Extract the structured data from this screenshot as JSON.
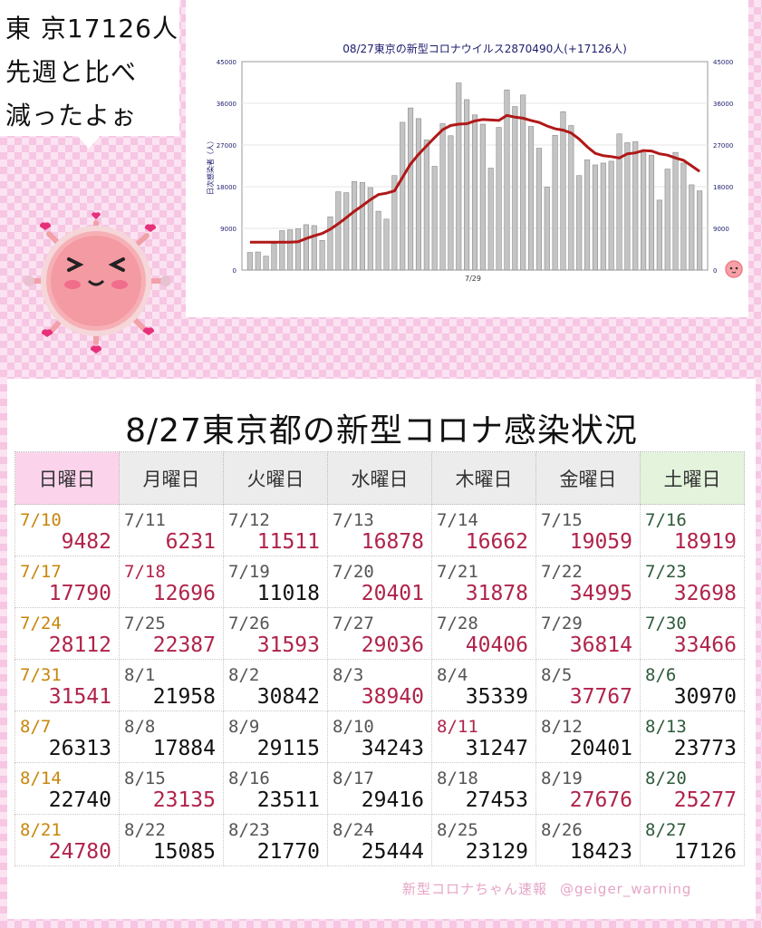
{
  "speech": {
    "line1": "東 京17126人",
    "line2": "先週と比べ",
    "line3": "減ったよぉ"
  },
  "chart_data": {
    "type": "bar",
    "title": "08/27東京の新型コロナウイルス2870490人(+17126人)",
    "ylabel": "日次感染者（人）",
    "xtick": "7/29",
    "ylim": [
      0,
      45000
    ],
    "yticks": [
      "0",
      "9000",
      "18000",
      "27000",
      "36000",
      "45000"
    ],
    "bar_color": "#c4c4c4",
    "avg_color": "#b01818",
    "values": [
      3800,
      3900,
      3000,
      5700,
      8500,
      8700,
      8900,
      9800,
      9600,
      6400,
      11500,
      16900,
      16700,
      19100,
      18900,
      17800,
      12700,
      11000,
      20400,
      31900,
      35000,
      32700,
      28100,
      22400,
      31600,
      29000,
      40400,
      36800,
      33500,
      31500,
      22000,
      30800,
      38900,
      35300,
      37800,
      31000,
      26300,
      17900,
      29100,
      34200,
      31200,
      20400,
      23800,
      22700,
      23100,
      23500,
      29400,
      27500,
      27700,
      25300,
      24800,
      15100,
      21800,
      25400,
      23100,
      18400,
      17100
    ],
    "moving_average": [
      6000,
      6000,
      6000,
      6000,
      6000,
      6000,
      6100,
      6800,
      7400,
      7900,
      8800,
      10000,
      11300,
      12700,
      13900,
      15200,
      16300,
      16600,
      17100,
      20000,
      22900,
      25000,
      26800,
      28600,
      30300,
      31200,
      31500,
      31600,
      32200,
      32500,
      32400,
      32300,
      33400,
      33000,
      32800,
      32300,
      31900,
      31100,
      30500,
      30200,
      29600,
      28300,
      26600,
      25200,
      24700,
      24500,
      24200,
      25100,
      25300,
      25800,
      25700,
      25100,
      24800,
      24200,
      23700,
      22500,
      21300
    ]
  },
  "table": {
    "title": "8/27東京都の新型コロナ感染状況",
    "headers": [
      "日曜日",
      "月曜日",
      "火曜日",
      "水曜日",
      "木曜日",
      "金曜日",
      "土曜日"
    ],
    "rows": [
      [
        {
          "date": "7/10",
          "value": "9482"
        },
        {
          "date": "7/11",
          "value": "6231"
        },
        {
          "date": "7/12",
          "value": "11511"
        },
        {
          "date": "7/13",
          "value": "16878"
        },
        {
          "date": "7/14",
          "value": "16662"
        },
        {
          "date": "7/15",
          "value": "19059"
        },
        {
          "date": "7/16",
          "value": "18919"
        }
      ],
      [
        {
          "date": "7/17",
          "value": "17790"
        },
        {
          "date": "7/18",
          "value": "12696"
        },
        {
          "date": "7/19",
          "value": "11018"
        },
        {
          "date": "7/20",
          "value": "20401"
        },
        {
          "date": "7/21",
          "value": "31878"
        },
        {
          "date": "7/22",
          "value": "34995"
        },
        {
          "date": "7/23",
          "value": "32698"
        }
      ],
      [
        {
          "date": "7/24",
          "value": "28112"
        },
        {
          "date": "7/25",
          "value": "22387"
        },
        {
          "date": "7/26",
          "value": "31593"
        },
        {
          "date": "7/27",
          "value": "29036"
        },
        {
          "date": "7/28",
          "value": "40406"
        },
        {
          "date": "7/29",
          "value": "36814"
        },
        {
          "date": "7/30",
          "value": "33466"
        }
      ],
      [
        {
          "date": "7/31",
          "value": "31541"
        },
        {
          "date": "8/1",
          "value": "21958"
        },
        {
          "date": "8/2",
          "value": "30842"
        },
        {
          "date": "8/3",
          "value": "38940"
        },
        {
          "date": "8/4",
          "value": "35339"
        },
        {
          "date": "8/5",
          "value": "37767"
        },
        {
          "date": "8/6",
          "value": "30970"
        }
      ],
      [
        {
          "date": "8/7",
          "value": "26313"
        },
        {
          "date": "8/8",
          "value": "17884"
        },
        {
          "date": "8/9",
          "value": "29115"
        },
        {
          "date": "8/10",
          "value": "34243"
        },
        {
          "date": "8/11",
          "value": "31247"
        },
        {
          "date": "8/12",
          "value": "20401"
        },
        {
          "date": "8/13",
          "value": "23773"
        }
      ],
      [
        {
          "date": "8/14",
          "value": "22740"
        },
        {
          "date": "8/15",
          "value": "23135"
        },
        {
          "date": "8/16",
          "value": "23511"
        },
        {
          "date": "8/17",
          "value": "29416"
        },
        {
          "date": "8/18",
          "value": "27453"
        },
        {
          "date": "8/19",
          "value": "27676"
        },
        {
          "date": "8/20",
          "value": "25277"
        }
      ],
      [
        {
          "date": "8/21",
          "value": "24780"
        },
        {
          "date": "8/22",
          "value": "15085"
        },
        {
          "date": "8/23",
          "value": "21770"
        },
        {
          "date": "8/24",
          "value": "25444"
        },
        {
          "date": "8/25",
          "value": "23129"
        },
        {
          "date": "8/26",
          "value": "18423"
        },
        {
          "date": "8/27",
          "value": "17126"
        }
      ]
    ],
    "highlighted": [
      [
        1,
        1,
        1,
        1,
        1,
        1,
        1
      ],
      [
        1,
        1,
        0,
        1,
        1,
        1,
        1
      ],
      [
        1,
        1,
        1,
        1,
        1,
        1,
        1
      ],
      [
        1,
        0,
        0,
        1,
        0,
        1,
        0
      ],
      [
        0,
        0,
        0,
        0,
        0,
        0,
        0
      ],
      [
        0,
        1,
        0,
        0,
        0,
        1,
        1
      ],
      [
        1,
        0,
        0,
        0,
        0,
        0,
        0
      ]
    ],
    "holiday_dates": [
      "7/18",
      "8/11"
    ]
  },
  "credit": {
    "source": "新型コロナちゃん速報",
    "handle": "@geiger_warning"
  },
  "icons": {
    "mascot": "coronavirus-mascot-icon",
    "small_mascot": "small-virus-icon"
  }
}
